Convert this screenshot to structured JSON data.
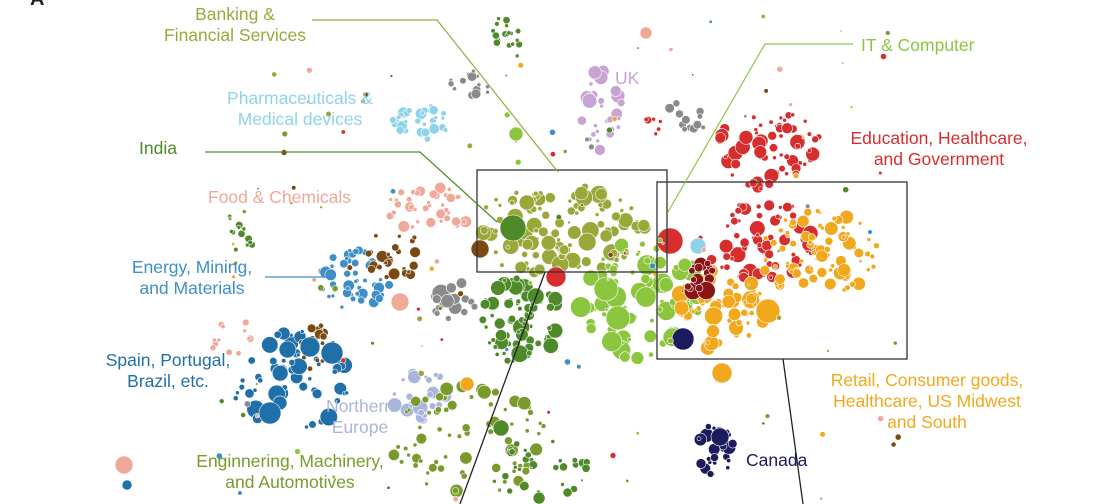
{
  "panel_letter": "A",
  "labels": {
    "banking": "Banking &\nFinancial Services",
    "it": "IT & Computer",
    "uk": "UK",
    "pharma": "Pharmaceuticals &\nMedical devices",
    "india": "India",
    "education": "Education, Healthcare,\nand Government",
    "food": "Food & Chemicals",
    "energy": "Energy, Mining,\nand Materials",
    "spain": "Spain, Portugal,\nBrazil, etc.",
    "northern": "Northern\nEurope",
    "retail": "Retail, Consumer goods,\nHealthcare, US Midwest\nand South",
    "canada": "Canada",
    "engineering": "Enginnering, Machinery,\nand Automotives"
  },
  "colors": {
    "banking": "#9aa83a",
    "it": "#8cc63f",
    "uk": "#c9a3d4",
    "pharma": "#8fd3ea",
    "india": "#4f8a2a",
    "education": "#d62e2e",
    "food": "#f0a898",
    "energy": "#3f8fc6",
    "spain": "#1f6fa8",
    "northern": "#a9b6dc",
    "retail": "#f2a81d",
    "canada": "#1b1b5e",
    "engineering": "#7b9a2c",
    "brown": "#7a4a12",
    "gray": "#8a8a8a",
    "darkred": "#8b1414"
  }
}
